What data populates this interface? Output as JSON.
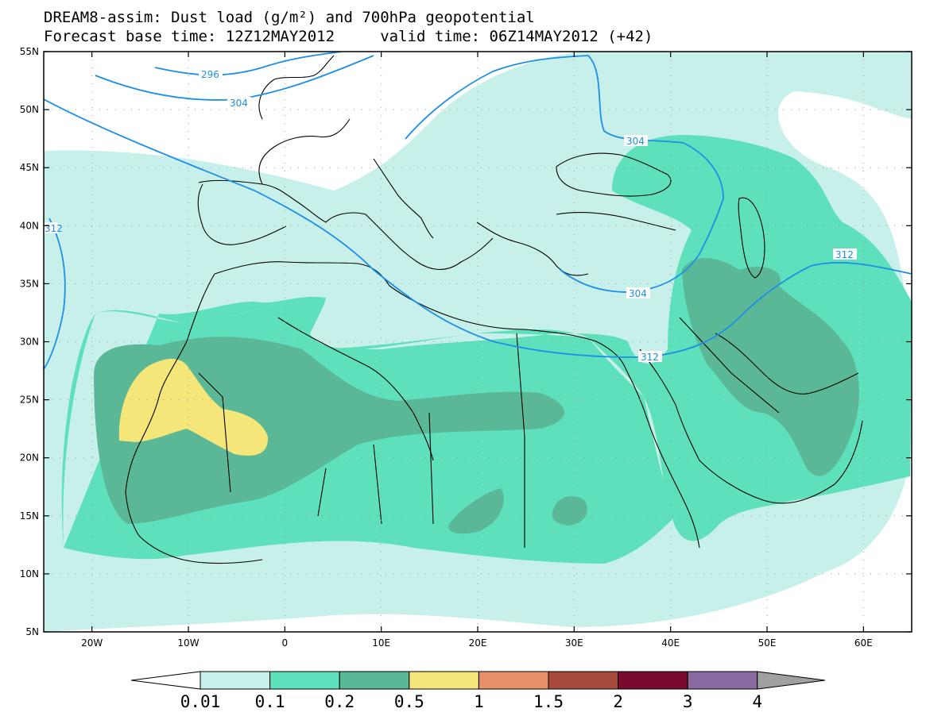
{
  "title": {
    "line1": "DREAM8-assim: Dust load (g/m²) and 700hPa geopotential",
    "line2": "Forecast base time: 12Z12MAY2012     valid time: 06Z14MAY2012 (+42)"
  },
  "axes": {
    "lat_labels": [
      "55N",
      "50N",
      "45N",
      "40N",
      "35N",
      "30N",
      "25N",
      "20N",
      "15N",
      "10N",
      "5N"
    ],
    "lon_labels": [
      "20W",
      "10W",
      "0",
      "10E",
      "20E",
      "30E",
      "40E",
      "50E",
      "60E"
    ]
  },
  "contour_labels": [
    "296",
    "304",
    "304",
    "312",
    "312",
    "304",
    "312"
  ],
  "colorbar": {
    "levels": [
      "0.01",
      "0.1",
      "0.2",
      "0.5",
      "1",
      "1.5",
      "2",
      "3",
      "4"
    ],
    "colors": [
      "#c8f0ea",
      "#5ee0bc",
      "#5ab896",
      "#f5e67a",
      "#e8906a",
      "#a84a3c",
      "#7a0a2e",
      "#8a6aa0"
    ],
    "extend_low_color": "#ffffff",
    "extend_high_color": "#a0a0a0"
  },
  "field_colors": {
    "level1": "#c8f0ea",
    "level2": "#5ee0bc",
    "level3": "#5ab896",
    "level4": "#f5e67a",
    "contour": "#1e8fe6",
    "coast": "#000000"
  }
}
